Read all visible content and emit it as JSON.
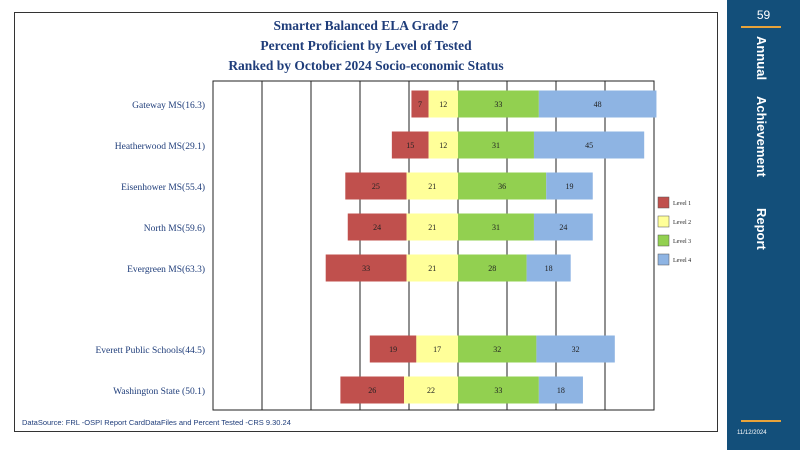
{
  "title_lines": [
    "Smarter Balanced ELA Grade 7",
    "Percent Proficient by Level of Tested",
    "Ranked by October 2024 Socio-economic  Status"
  ],
  "source_note": "DataSource:  FRL  -OSPI  Report CardDataFiles  and  Percent  Tested     -CRS  9.30.24",
  "sidebar": {
    "page_number": "59",
    "words": [
      "Annual",
      "Achievement",
      "Report"
    ],
    "date": "11/12/2024"
  },
  "colors": {
    "level1": "#c0504d",
    "level2": "#ffff99",
    "level3": "#92d050",
    "level4": "#8eb4e3",
    "sidebar": "#134f7a",
    "accent": "#e8a33a"
  },
  "chart_data": {
    "type": "bar",
    "orientation": "horizontal-diverging",
    "title": "Smarter Balanced ELA Grade 7 — Percent Proficient by Level of Tested",
    "categories": [
      "Gateway MS(16.3)",
      "Heatherwood  MS(29.1)",
      "Eisenhower MS(55.4)",
      "North MS(59.6)",
      "Evergreen  MS(63.3)",
      "Everett  Public Schools(44.5)",
      "Washington State  (50.1)"
    ],
    "series": [
      {
        "name": "Level  1",
        "values": [
          7,
          15,
          25,
          24,
          33,
          19,
          26
        ]
      },
      {
        "name": "Level  2",
        "values": [
          12,
          12,
          21,
          21,
          21,
          17,
          22
        ]
      },
      {
        "name": "Level  3",
        "values": [
          33,
          31,
          36,
          31,
          28,
          32,
          33
        ]
      },
      {
        "name": "Level  4",
        "values": [
          48,
          45,
          19,
          24,
          18,
          32,
          18
        ]
      }
    ],
    "xlim": [
      -100,
      80
    ],
    "grid": true,
    "legend": "right"
  }
}
